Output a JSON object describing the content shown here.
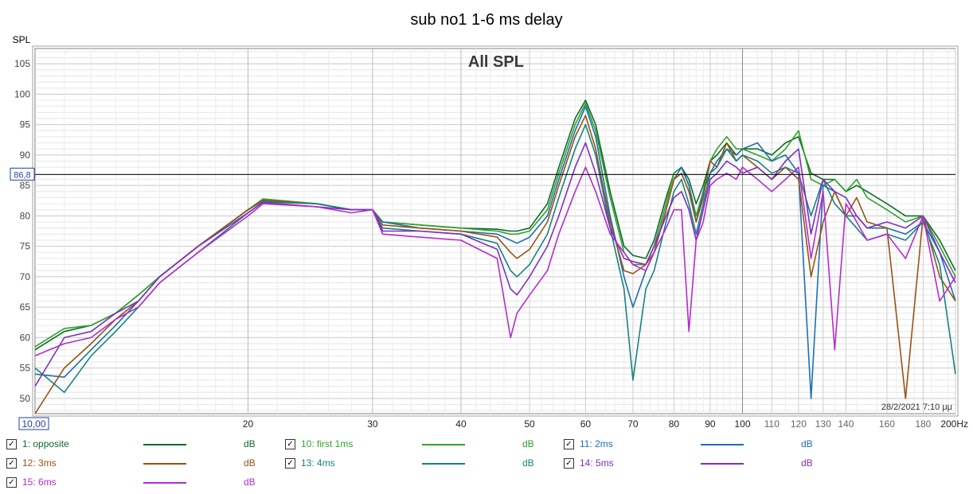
{
  "chart_data": {
    "type": "line",
    "title": "sub no1 1-6 ms delay",
    "subtitle": "All SPL",
    "ylabel": "SPL",
    "xunit": "Hz",
    "xscale": "log",
    "xlim": [
      10,
      200
    ],
    "ylim": [
      47.5,
      107.5
    ],
    "grid": true,
    "cursor_value": "86,8",
    "cursor_y": 86.8,
    "x_start_label": "10,00",
    "timestamp": "28/2/2021 7:10 μμ",
    "y_ticks": [
      50,
      55,
      60,
      65,
      70,
      75,
      80,
      85,
      90,
      95,
      100,
      105
    ],
    "y_tick_labels": [
      "50",
      "55",
      "60",
      "65",
      "70",
      "75",
      "80",
      "85",
      "90",
      "95",
      "100",
      "105"
    ],
    "x_ticks": [
      20,
      30,
      40,
      50,
      60,
      70,
      80,
      90,
      100,
      110,
      120,
      130,
      140,
      160,
      180,
      200
    ],
    "x_tick_labels": [
      "20",
      "30",
      "40",
      "50",
      "60",
      "70",
      "80",
      "90",
      "100",
      "110",
      "120",
      "130",
      "140",
      "160",
      "180",
      "200Hz"
    ],
    "x": [
      10,
      11,
      12,
      13,
      14,
      15,
      17,
      20,
      21,
      25,
      28,
      30,
      31,
      35,
      40,
      45,
      47,
      48,
      50,
      53,
      55,
      58,
      60,
      62,
      65,
      68,
      70,
      73,
      75,
      78,
      80,
      82,
      84,
      86,
      88,
      90,
      92,
      95,
      98,
      100,
      105,
      110,
      115,
      120,
      125,
      130,
      135,
      140,
      145,
      150,
      160,
      170,
      180,
      190,
      200
    ],
    "series": [
      {
        "name": "1: opposite",
        "color": "#0e6b2a",
        "unit": "dB",
        "values": [
          58,
          61,
          62,
          64,
          67,
          70,
          75,
          81,
          82.5,
          82,
          81,
          81,
          79,
          78.5,
          78,
          77.8,
          77.5,
          77.5,
          78,
          82,
          88,
          96,
          99,
          95,
          84,
          75,
          73.5,
          73,
          76,
          83,
          87,
          88,
          86,
          82,
          85,
          89,
          90,
          92,
          90,
          91,
          91,
          90,
          92,
          93,
          87,
          86,
          86,
          84,
          85,
          84,
          82,
          80,
          80,
          76,
          71
        ]
      },
      {
        "name": "10: first 1ms",
        "color": "#2fa329",
        "unit": "dB",
        "values": [
          58.5,
          61.5,
          62,
          64,
          67,
          70,
          75,
          81,
          82.8,
          82,
          81,
          81,
          79,
          78.5,
          78,
          77.5,
          77,
          77,
          77.5,
          81,
          87,
          95,
          98.5,
          94,
          83,
          74,
          72,
          72,
          75,
          82,
          87,
          88,
          85,
          80,
          84,
          89,
          91,
          93,
          91,
          91,
          90,
          89,
          91,
          94,
          86,
          85,
          86,
          84,
          86,
          83,
          81,
          79,
          80,
          75,
          70
        ]
      },
      {
        "name": "11: 2ms",
        "color": "#1b6fb5",
        "unit": "dB",
        "values": [
          54,
          53.5,
          58,
          62,
          66,
          70,
          75,
          81,
          82.5,
          82,
          81,
          81,
          79,
          78,
          77.5,
          77,
          76,
          75.5,
          76.5,
          80,
          86,
          94,
          98,
          93,
          80,
          70,
          65,
          71,
          74,
          81,
          86,
          88,
          85,
          79,
          84,
          87,
          89,
          91,
          90,
          91,
          92,
          89,
          90,
          87,
          50,
          85,
          84,
          80,
          80,
          78,
          78,
          77,
          79,
          74,
          66
        ]
      },
      {
        "name": "12: 3ms",
        "color": "#9a5213",
        "unit": "dB",
        "values": [
          47,
          55,
          59,
          63,
          66,
          70,
          75,
          81,
          82.6,
          82,
          81,
          81,
          78.5,
          78,
          77.5,
          76.5,
          74,
          73,
          74.5,
          79,
          85,
          93,
          96.5,
          91,
          79,
          71,
          70.5,
          72,
          74,
          81,
          86,
          87,
          84,
          79,
          83,
          89,
          88,
          92,
          89,
          90,
          88,
          86,
          88,
          86,
          70,
          79,
          84,
          80,
          83,
          79,
          78,
          50,
          80,
          70,
          66
        ]
      },
      {
        "name": "13: 4ms",
        "color": "#17837f",
        "unit": "dB",
        "values": [
          55,
          51,
          57,
          61,
          65,
          69,
          74,
          80.5,
          82.3,
          82,
          81,
          81,
          78,
          77.5,
          77,
          75.5,
          71,
          70,
          72,
          77,
          83,
          91,
          95,
          90,
          78,
          68,
          53,
          68,
          71,
          79,
          84,
          86,
          82,
          77,
          82,
          87,
          88,
          91,
          89,
          90,
          89,
          87,
          88,
          87,
          80,
          86,
          82,
          80,
          78,
          76,
          77,
          76,
          79,
          72,
          54
        ]
      },
      {
        "name": "14: 5ms",
        "color": "#7d2fc2",
        "unit": "dB",
        "values": [
          52,
          60,
          61,
          64,
          66,
          70,
          75,
          80.5,
          82.2,
          81.5,
          81,
          81,
          77.5,
          77.5,
          77,
          74.5,
          68,
          67,
          70,
          75,
          80,
          88,
          92,
          87,
          78,
          73,
          72.5,
          72,
          75,
          80,
          83,
          84,
          81,
          76,
          81,
          86,
          87,
          89,
          88,
          87,
          88,
          86,
          89,
          91,
          77,
          86,
          84,
          83,
          80,
          78,
          79,
          78,
          80,
          74,
          69
        ]
      },
      {
        "name": "15: 6ms",
        "color": "#b52ad0",
        "unit": "dB",
        "values": [
          57,
          59,
          60,
          63,
          65,
          69,
          74,
          80,
          82,
          81.5,
          80.5,
          81,
          77,
          76.5,
          76,
          73,
          60,
          64,
          67,
          71,
          77,
          84,
          88,
          84,
          77,
          74,
          72,
          71,
          74,
          78,
          81,
          81,
          61,
          76,
          79,
          85,
          86,
          87,
          86,
          88,
          86,
          84,
          86,
          88,
          73,
          84,
          58,
          82,
          79,
          76,
          77,
          73,
          80,
          66,
          70
        ]
      }
    ]
  }
}
